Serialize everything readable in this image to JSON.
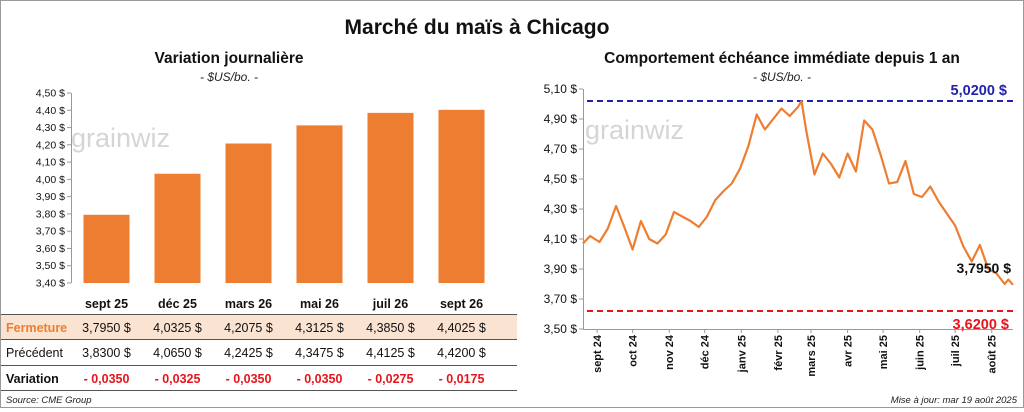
{
  "header": {
    "title": "Marché du maïs à Chicago"
  },
  "left_chart": {
    "title": "Variation journalière",
    "unit": "- $US/bo. -",
    "watermark": "grainwiz"
  },
  "right_chart": {
    "title": "Comportement échéance immédiate depuis 1 an",
    "unit": "- $US/bo. -",
    "watermark": "grainwiz"
  },
  "table": {
    "rows": [
      {
        "label": "Fermeture",
        "values": [
          "3,7950  $",
          "4,0325  $",
          "4,2075  $",
          "4,3125  $",
          "4,3850  $",
          "4,4025  $"
        ]
      },
      {
        "label": "Précédent",
        "values": [
          "3,8300  $",
          "4,0650  $",
          "4,2425  $",
          "4,3475  $",
          "4,4125  $",
          "4,4200  $"
        ]
      },
      {
        "label": "Variation",
        "values": [
          "- 0,0350",
          "- 0,0325",
          "- 0,0350",
          "- 0,0350",
          "- 0,0275",
          "- 0,0175"
        ]
      }
    ]
  },
  "footer": {
    "source": "Source: CME Group",
    "updated": "Mise à jour: mar 19 août 2025"
  },
  "colors": {
    "bar": "#ED7D31",
    "line": "#ED7D31",
    "high_line": "#2222AA",
    "low_line": "#E8141C",
    "closing_row_bg": "#FBE3D2",
    "negative": "#E8141C"
  },
  "chart_data": [
    {
      "type": "bar",
      "title": "Variation journalière",
      "ylabel": "- $US/bo. -",
      "categories": [
        "sept 25",
        "déc 25",
        "mars 26",
        "mai 26",
        "juil 26",
        "sept 26"
      ],
      "values": [
        3.795,
        4.0325,
        4.2075,
        4.3125,
        4.385,
        4.4025
      ],
      "ylim": [
        3.4,
        4.5
      ],
      "yticks": [
        "3,40 $",
        "3,50 $",
        "3,60 $",
        "3,70 $",
        "3,80 $",
        "3,90 $",
        "4,00 $",
        "4,10 $",
        "4,20 $",
        "4,30 $",
        "4,40 $",
        "4,50 $"
      ],
      "grid": false
    },
    {
      "type": "line",
      "title": "Comportement échéance immédiate depuis 1 an",
      "ylabel": "- $US/bo. -",
      "x": [
        "2024-08-20",
        "2024-08-26",
        "2024-09-03",
        "2024-09-10",
        "2024-09-17",
        "2024-09-24",
        "2024-10-01",
        "2024-10-08",
        "2024-10-15",
        "2024-10-22",
        "2024-10-29",
        "2024-11-05",
        "2024-11-12",
        "2024-11-19",
        "2024-11-26",
        "2024-12-03",
        "2024-12-10",
        "2024-12-17",
        "2024-12-24",
        "2024-12-31",
        "2025-01-07",
        "2025-01-14",
        "2025-01-21",
        "2025-01-28",
        "2025-02-04",
        "2025-02-11",
        "2025-02-18",
        "2025-02-21",
        "2025-02-25",
        "2025-03-04",
        "2025-03-11",
        "2025-03-18",
        "2025-03-25",
        "2025-04-01",
        "2025-04-08",
        "2025-04-15",
        "2025-04-22",
        "2025-04-29",
        "2025-05-06",
        "2025-05-13",
        "2025-05-20",
        "2025-05-27",
        "2025-06-03",
        "2025-06-10",
        "2025-06-17",
        "2025-06-24",
        "2025-07-01",
        "2025-07-08",
        "2025-07-15",
        "2025-07-22",
        "2025-07-29",
        "2025-08-05",
        "2025-08-12",
        "2025-08-15",
        "2025-08-19"
      ],
      "series": [
        {
          "values": [
            4.07,
            4.12,
            4.08,
            4.17,
            4.32,
            4.18,
            4.03,
            4.22,
            4.1,
            4.07,
            4.13,
            4.28,
            4.25,
            4.22,
            4.18,
            4.25,
            4.36,
            4.42,
            4.47,
            4.57,
            4.72,
            4.93,
            4.83,
            4.9,
            4.97,
            4.92,
            4.98,
            5.02,
            4.82,
            4.53,
            4.67,
            4.6,
            4.51,
            4.67,
            4.55,
            4.89,
            4.83,
            4.66,
            4.47,
            4.48,
            4.62,
            4.4,
            4.38,
            4.45,
            4.35,
            4.27,
            4.19,
            4.05,
            3.95,
            4.06,
            3.9,
            3.87,
            3.8,
            3.83,
            3.795
          ]
        }
      ],
      "annotations": [
        {
          "label": "5,0200 $",
          "y": 5.02
        },
        {
          "label": "3,7950 $",
          "y": 3.795
        },
        {
          "label": "3,6200 $",
          "y": 3.62
        }
      ],
      "ylim": [
        3.5,
        5.1
      ],
      "yticks": [
        "3,50 $",
        "3,70 $",
        "3,90 $",
        "4,10 $",
        "4,30 $",
        "4,50 $",
        "4,70 $",
        "4,90 $",
        "5,10 $"
      ],
      "xticks": [
        "sept 24",
        "oct 24",
        "nov 24",
        "déc 24",
        "janv 25",
        "févr 25",
        "mars 25",
        "avr 25",
        "mai 25",
        "juin 25",
        "juil 25",
        "août 25"
      ],
      "grid": false
    }
  ]
}
